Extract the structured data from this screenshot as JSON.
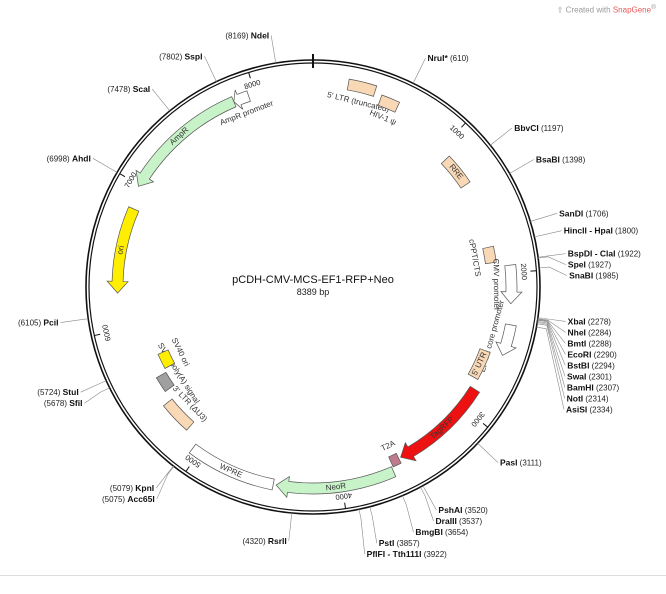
{
  "credit": {
    "prefix": "Created with",
    "brand": "SnapGene",
    "mark": "®"
  },
  "plasmid": {
    "name": "pCDH-CMV-MCS-EF1-RFP+Neo",
    "length_label": "8389 bp",
    "length": 8389
  },
  "ticks": [
    {
      "pos": 1000,
      "label": "1000"
    },
    {
      "pos": 2000,
      "label": "2000"
    },
    {
      "pos": 3000,
      "label": "3000"
    },
    {
      "pos": 4000,
      "label": "4000"
    },
    {
      "pos": 5000,
      "label": "5000"
    },
    {
      "pos": 6000,
      "label": "6000"
    },
    {
      "pos": 7000,
      "label": "7000"
    },
    {
      "pos": 8000,
      "label": "8000"
    }
  ],
  "features": [
    {
      "name": "5' LTR (truncated)",
      "start": 230,
      "end": 410,
      "type": "ltr",
      "color": "#f9d8b5",
      "arrow": false
    },
    {
      "name": "HIV-1 ψ",
      "start": 460,
      "end": 585,
      "type": "misc",
      "color": "#f9d8b5",
      "arrow": false
    },
    {
      "name": "RRE",
      "start": 1075,
      "end": 1310,
      "type": "misc",
      "color": "#f9d8b5",
      "arrow": false
    },
    {
      "name": "cPPT/CTS",
      "start": 1800,
      "end": 1918,
      "type": "misc",
      "color": "#f9d8b5",
      "arrow": false
    },
    {
      "name": "CMV promoter",
      "start": 1950,
      "end": 2210,
      "type": "promoter",
      "color": "#ffffff",
      "arrow": true,
      "dir": 1
    },
    {
      "name": "EF-1α core promoter",
      "start": 2350,
      "end": 2560,
      "type": "promoter",
      "color": "#ffffff",
      "arrow": true,
      "dir": 1
    },
    {
      "name": "5' UTR",
      "start": 2570,
      "end": 2780,
      "type": "misc",
      "color": "#f9d8b5",
      "arrow": false
    },
    {
      "name": "TagRFP",
      "start": 2850,
      "end": 3560,
      "type": "cds",
      "color": "#ee1111",
      "arrow": true,
      "dir": 1
    },
    {
      "name": "T2A",
      "start": 3575,
      "end": 3635,
      "type": "cds",
      "color": "#c07a8e",
      "arrow": false
    },
    {
      "name": "NeoR",
      "start": 3645,
      "end": 4440,
      "type": "cds",
      "color": "#c8f2c8",
      "arrow": true,
      "dir": 1
    },
    {
      "name": "WPRE",
      "start": 4460,
      "end": 5050,
      "type": "misc",
      "color": "#ffffff",
      "arrow": false
    },
    {
      "name": "3' LTR (ΔU3)",
      "start": 5160,
      "end": 5395,
      "type": "ltr",
      "color": "#f9d8b5",
      "arrow": false
    },
    {
      "name": "SV40 poly(A) signal",
      "start": 5470,
      "end": 5590,
      "type": "polya",
      "color": "#a0a0a0",
      "arrow": false
    },
    {
      "name": "SV40 ori",
      "start": 5620,
      "end": 5745,
      "type": "ori",
      "color": "#ffee00",
      "arrow": false
    },
    {
      "name": "ori",
      "start": 6250,
      "end": 6840,
      "type": "ori",
      "color": "#ffee00",
      "arrow": true,
      "dir": -1
    },
    {
      "name": "AmpR",
      "start": 6990,
      "end": 7850,
      "type": "cds",
      "color": "#c8f2c8",
      "arrow": true,
      "dir": -1
    },
    {
      "name": "AmpR promoter",
      "start": 7850,
      "end": 7955,
      "type": "promoter",
      "color": "#ffffff",
      "arrow": true,
      "dir": -1
    }
  ],
  "sites": [
    {
      "name": "NdeI",
      "pos": 8169,
      "label_pos": "(8169)",
      "side": "left"
    },
    {
      "name": "NruI*",
      "pos": 610,
      "label_pos": "(610)",
      "side": "right",
      "muted": true
    },
    {
      "name": "SspI",
      "pos": 7802,
      "label_pos": "(7802)",
      "side": "left"
    },
    {
      "name": "ScaI",
      "pos": 7478,
      "label_pos": "(7478)",
      "side": "left"
    },
    {
      "name": "AhdI",
      "pos": 6998,
      "label_pos": "(6998)",
      "side": "left"
    },
    {
      "name": "PciI",
      "pos": 6105,
      "label_pos": "(6105)",
      "side": "left"
    },
    {
      "name": "StuI",
      "pos": 5724,
      "label_pos": "(5724)",
      "side": "left"
    },
    {
      "name": "SfiI",
      "pos": 5678,
      "label_pos": "(5678)",
      "side": "left"
    },
    {
      "name": "KpnI",
      "pos": 5079,
      "label_pos": "(5079)",
      "side": "left"
    },
    {
      "name": "Acc65I",
      "pos": 5075,
      "label_pos": "(5075)",
      "side": "left"
    },
    {
      "name": "RsrII",
      "pos": 4320,
      "label_pos": "(4320)",
      "side": "left"
    },
    {
      "name": "BbvCI",
      "pos": 1197,
      "label_pos": "(1197)",
      "side": "right"
    },
    {
      "name": "BsaBI",
      "pos": 1398,
      "label_pos": "(1398)",
      "side": "right"
    },
    {
      "name": "SanDI",
      "pos": 1706,
      "label_pos": "(1706)",
      "side": "right"
    },
    {
      "name": "HincII - HpaI",
      "pos": 1800,
      "label_pos": "(1800)",
      "side": "right"
    },
    {
      "name": "BspDI - ClaI",
      "pos": 1922,
      "label_pos": "(1922)",
      "side": "right"
    },
    {
      "name": "SpeI",
      "pos": 1927,
      "label_pos": "(1927)",
      "side": "right"
    },
    {
      "name": "SnaBI",
      "pos": 1985,
      "label_pos": "(1985)",
      "side": "right"
    },
    {
      "name": "XbaI",
      "pos": 2278,
      "label_pos": "(2278)",
      "side": "right"
    },
    {
      "name": "NheI",
      "pos": 2284,
      "label_pos": "(2284)",
      "side": "right"
    },
    {
      "name": "BmtI",
      "pos": 2288,
      "label_pos": "(2288)",
      "side": "right"
    },
    {
      "name": "EcoRI",
      "pos": 2290,
      "label_pos": "(2290)",
      "side": "right"
    },
    {
      "name": "BstBI",
      "pos": 2294,
      "label_pos": "(2294)",
      "side": "right"
    },
    {
      "name": "SwaI",
      "pos": 2301,
      "label_pos": "(2301)",
      "side": "right"
    },
    {
      "name": "BamHI",
      "pos": 2307,
      "label_pos": "(2307)",
      "side": "right"
    },
    {
      "name": "NotI",
      "pos": 2314,
      "label_pos": "(2314)",
      "side": "right"
    },
    {
      "name": "AsiSI",
      "pos": 2334,
      "label_pos": "(2334)",
      "side": "right"
    },
    {
      "name": "PasI",
      "pos": 3111,
      "label_pos": "(3111)",
      "side": "right"
    },
    {
      "name": "PshAI",
      "pos": 3520,
      "label_pos": "(3520)",
      "side": "right"
    },
    {
      "name": "DraIII",
      "pos": 3537,
      "label_pos": "(3537)",
      "side": "right"
    },
    {
      "name": "BmgBI",
      "pos": 3654,
      "label_pos": "(3654)",
      "side": "right"
    },
    {
      "name": "PstI",
      "pos": 3857,
      "label_pos": "(3857)",
      "side": "right"
    },
    {
      "name": "PflFI - Tth111I",
      "pos": 3922,
      "label_pos": "(3922)",
      "side": "right"
    }
  ]
}
